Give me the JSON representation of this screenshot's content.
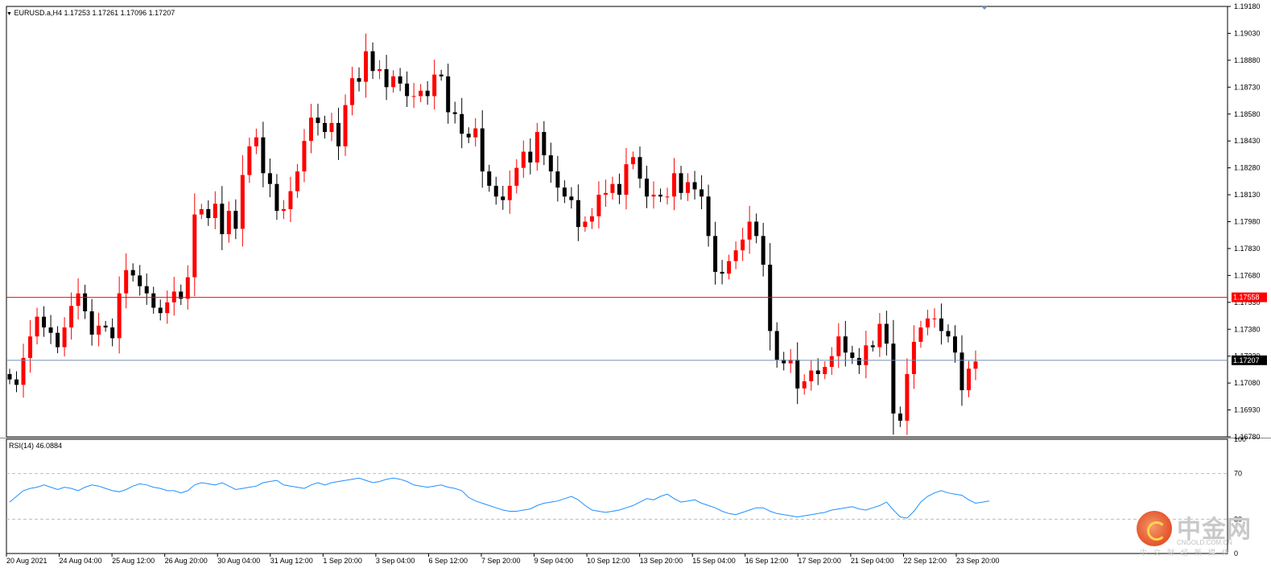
{
  "symbol_header": {
    "symbol": "EURUSD.a,H4",
    "open": "1.17253",
    "high": "1.17261",
    "low": "1.17096",
    "close": "1.17207"
  },
  "rsi_header": {
    "label": "RSI(14) 46.0884"
  },
  "price_axis": {
    "labels": [
      "1.19180",
      "1.19030",
      "1.18880",
      "1.18730",
      "1.18580",
      "1.18430",
      "1.18280",
      "1.18130",
      "1.17980",
      "1.17830",
      "1.17680",
      "1.17530",
      "1.17380",
      "1.17230",
      "1.17080",
      "1.16930",
      "1.16780"
    ],
    "range": [
      1.1678,
      1.1918
    ]
  },
  "rsi_axis": {
    "labels": [
      "100",
      "70",
      "30",
      "0"
    ],
    "levels": [
      100,
      70,
      30,
      0
    ]
  },
  "time_axis": {
    "labels": [
      "20 Aug 2021",
      "24 Aug 04:00",
      "25 Aug 12:00",
      "26 Aug 20:00",
      "30 Aug 04:00",
      "31 Aug 12:00",
      "1 Sep 20:00",
      "3 Sep 04:00",
      "6 Sep 12:00",
      "7 Sep 20:00",
      "9 Sep 04:00",
      "10 Sep 12:00",
      "13 Sep 20:00",
      "15 Sep 04:00",
      "16 Sep 12:00",
      "17 Sep 20:00",
      "21 Sep 04:00",
      "22 Sep 12:00",
      "23 Sep 20:00"
    ]
  },
  "levels": {
    "alert_line": {
      "price": 1.17558,
      "label": "1.17558",
      "color": "#ff0000"
    },
    "bid_line": {
      "price": 1.17207,
      "label": "1.17207",
      "color": "#6f8fb8"
    }
  },
  "colors": {
    "bull": "#ff0000",
    "bear": "#000000",
    "rsi_line": "#1e90ff",
    "grid_dash": "#bdbdbd"
  },
  "chart_data": [
    {
      "type": "candlestick",
      "title": "EURUSD.a,H4",
      "ylim": [
        1.1678,
        1.1918
      ],
      "last": {
        "open": 1.17253,
        "high": 1.17261,
        "low": 1.17096,
        "close": 1.17207
      },
      "close_path": [
        1.171,
        1.1707,
        1.1722,
        1.1734,
        1.1745,
        1.1739,
        1.1736,
        1.1728,
        1.1739,
        1.1751,
        1.1758,
        1.1748,
        1.1735,
        1.174,
        1.1739,
        1.1733,
        1.1758,
        1.1771,
        1.1768,
        1.1762,
        1.1758,
        1.175,
        1.1747,
        1.1753,
        1.1759,
        1.1755,
        1.1767,
        1.1802,
        1.1805,
        1.18,
        1.1808,
        1.1791,
        1.1804,
        1.1794,
        1.1824,
        1.184,
        1.1845,
        1.1825,
        1.1819,
        1.1804,
        1.1805,
        1.1815,
        1.1826,
        1.1843,
        1.1856,
        1.1853,
        1.1848,
        1.1853,
        1.184,
        1.1863,
        1.1878,
        1.1876,
        1.1893,
        1.1882,
        1.1883,
        1.1873,
        1.1879,
        1.1875,
        1.1868,
        1.1868,
        1.1871,
        1.1868,
        1.188,
        1.1879,
        1.1859,
        1.1858,
        1.1847,
        1.1845,
        1.185,
        1.1826,
        1.1818,
        1.1812,
        1.181,
        1.1818,
        1.1828,
        1.1837,
        1.1831,
        1.1848,
        1.1835,
        1.1826,
        1.1817,
        1.1812,
        1.181,
        1.1795,
        1.1798,
        1.1801,
        1.1813,
        1.1814,
        1.1819,
        1.1813,
        1.183,
        1.1834,
        1.1822,
        1.1812,
        1.1813,
        1.1812,
        1.1812,
        1.1825,
        1.1814,
        1.182,
        1.1816,
        1.1812,
        1.179,
        1.177,
        1.1769,
        1.1776,
        1.1782,
        1.1788,
        1.1798,
        1.179,
        1.1774,
        1.1737,
        1.1721,
        1.1719,
        1.1721,
        1.1705,
        1.1709,
        1.1715,
        1.1713,
        1.1717,
        1.1723,
        1.1734,
        1.1725,
        1.1722,
        1.1718,
        1.1729,
        1.1728,
        1.1741,
        1.173,
        1.1691,
        1.1687,
        1.1713,
        1.1731,
        1.1739,
        1.1744,
        1.1744,
        1.1737,
        1.1734,
        1.1725,
        1.1704,
        1.1716,
        1.172
      ]
    },
    {
      "type": "line",
      "title": "RSI(14) 46.0884",
      "ylim": [
        0,
        100
      ],
      "reference_levels": [
        70,
        30
      ],
      "values": [
        45,
        50,
        55,
        57,
        58,
        60,
        58,
        56,
        58,
        57,
        55,
        58,
        60,
        59,
        57,
        55,
        54,
        56,
        59,
        61,
        60,
        58,
        57,
        55,
        55,
        53,
        55,
        60,
        62,
        61,
        60,
        62,
        59,
        56,
        57,
        58,
        59,
        62,
        63,
        64,
        60,
        59,
        58,
        57,
        60,
        62,
        60,
        62,
        63,
        64,
        65,
        66,
        64,
        62,
        63,
        65,
        66,
        65,
        63,
        60,
        59,
        58,
        59,
        60,
        58,
        57,
        55,
        49,
        46,
        44,
        42,
        40,
        38,
        37,
        37,
        38,
        39,
        42,
        44,
        45,
        46,
        48,
        50,
        47,
        42,
        38,
        37,
        36,
        37,
        38,
        40,
        42,
        45,
        48,
        47,
        50,
        52,
        48,
        45,
        46,
        47,
        44,
        42,
        40,
        37,
        35,
        34,
        36,
        38,
        40,
        40,
        37,
        35,
        34,
        33,
        32,
        33,
        34,
        35,
        36,
        38,
        39,
        40,
        41,
        39,
        38,
        40,
        42,
        45,
        38,
        32,
        31,
        37,
        45,
        50,
        53,
        55,
        53,
        52,
        51,
        47,
        44,
        45,
        46
      ]
    }
  ],
  "watermark": {
    "title": "中金网",
    "url": "CNGOLD.COM.CN",
    "subtitle": "中文财经新媒体"
  }
}
